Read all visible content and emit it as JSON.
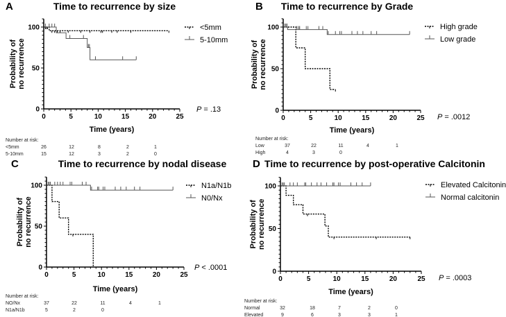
{
  "chart_data": [
    {
      "type": "line",
      "panel_letter": "A",
      "title": "Time to recurrence by size",
      "xlabel": "Time (years)",
      "ylabel": [
        "Probability of",
        "no recurrence"
      ],
      "xlim": [
        0,
        25
      ],
      "ylim": [
        0,
        100
      ],
      "xticks": [
        "0",
        "5",
        "10",
        "15",
        "20",
        "25"
      ],
      "yticks": [
        "0",
        "50",
        "100"
      ],
      "p_value_label": "P",
      "p_value": "= .13",
      "series": [
        {
          "name": "<5mm",
          "style": "dashed",
          "steps": [
            [
              0,
              100
            ],
            [
              1,
              95.5
            ]
          ],
          "end": 23,
          "censors": [
            0.3,
            0.5,
            0.7,
            1.5,
            2,
            2.5,
            3,
            4.5,
            6.8,
            8.5,
            10.5,
            10.8,
            12.5,
            13.5,
            16,
            23
          ]
        },
        {
          "name": "5-10mm",
          "style": "solid",
          "steps": [
            [
              0,
              100
            ],
            [
              2.3,
              93
            ],
            [
              4.1,
              86
            ],
            [
              8,
              75
            ],
            [
              8.5,
              60
            ]
          ],
          "end": 17,
          "censors": [
            0.3,
            1,
            1.5,
            2,
            4.8,
            7.3,
            8.2,
            8.4,
            9.5,
            14.5,
            17
          ]
        }
      ],
      "risk_table": {
        "header": "Number at risk:",
        "rows": [
          {
            "label": "<5mm",
            "values": [
              "26",
              "12",
              "8",
              "2",
              "1"
            ]
          },
          {
            "label": "5-10mm",
            "values": [
              "15",
              "12",
              "3",
              "2",
              "0"
            ]
          }
        ]
      }
    },
    {
      "type": "line",
      "panel_letter": "B",
      "title": "Time to recurrence by Grade",
      "xlabel": "Time (years)",
      "ylabel": [
        "Probability of",
        "no recurrence"
      ],
      "xlim": [
        0,
        25
      ],
      "ylim": [
        0,
        100
      ],
      "xticks": [
        "0",
        "5",
        "10",
        "15",
        "20",
        "25"
      ],
      "yticks": [
        "0",
        "50",
        "100"
      ],
      "p_value_label": "P",
      "p_value": "= .0012",
      "series": [
        {
          "name": "High grade",
          "style": "dashed",
          "steps": [
            [
              0,
              100
            ],
            [
              2.3,
              75
            ],
            [
              4,
              50
            ],
            [
              8.5,
              25
            ]
          ],
          "end": 9.5,
          "censors": [
            9.5
          ]
        },
        {
          "name": "Low grade",
          "style": "solid",
          "steps": [
            [
              0,
              100
            ],
            [
              0.8,
              97
            ],
            [
              8,
              91
            ]
          ],
          "end": 23,
          "censors": [
            0.3,
            0.5,
            0.7,
            2.5,
            2.8,
            3,
            4.2,
            4.5,
            6.5,
            7.2,
            8.2,
            9.5,
            10.3,
            10.6,
            12.5,
            13.5,
            14.5,
            16,
            17,
            23
          ]
        }
      ],
      "risk_table": {
        "header": "Number at risk:",
        "rows": [
          {
            "label": "Low",
            "values": [
              "37",
              "22",
              "11",
              "4",
              "1"
            ]
          },
          {
            "label": "High",
            "values": [
              "4",
              "3",
              "0"
            ]
          }
        ]
      }
    },
    {
      "type": "line",
      "panel_letter": "C",
      "title": "Time to recurrence by nodal disease",
      "xlabel": "Time (years)",
      "ylabel": [
        "Probability of",
        "no recurrence"
      ],
      "xlim": [
        0,
        25
      ],
      "ylim": [
        0,
        100
      ],
      "xticks": [
        "0",
        "5",
        "10",
        "15",
        "20",
        "25"
      ],
      "yticks": [
        "0",
        "50",
        "100"
      ],
      "p_value_label": "P",
      "p_value": "< .0001",
      "series": [
        {
          "name": "N1a/N1b",
          "style": "dashed",
          "steps": [
            [
              0,
              100
            ],
            [
              1,
              80
            ],
            [
              2.3,
              60
            ],
            [
              4,
              40
            ],
            [
              8.5,
              0
            ]
          ],
          "end": 8.5,
          "censors": [
            4.8
          ]
        },
        {
          "name": "N0/Nx",
          "style": "solid",
          "steps": [
            [
              0,
              100
            ],
            [
              8,
              94
            ]
          ],
          "end": 23,
          "censors": [
            0.3,
            0.5,
            0.7,
            1.5,
            2,
            2.5,
            3,
            4.3,
            4.6,
            6.5,
            7.2,
            8.2,
            9.3,
            9.5,
            10.3,
            10.6,
            12.5,
            13.5,
            14.5,
            16,
            17,
            23
          ]
        }
      ],
      "risk_table": {
        "header": "Number at risk:",
        "rows": [
          {
            "label": "NO/Nx",
            "values": [
              "37",
              "22",
              "11",
              "4",
              "1"
            ]
          },
          {
            "label": "N1a/N1b",
            "values": [
              "5",
              "2",
              "0"
            ]
          }
        ]
      }
    },
    {
      "type": "line",
      "panel_letter": "D",
      "title": "Time to recurrence by post-operative Calcitonin",
      "xlabel": "Time (years)",
      "ylabel": [
        "Probability of",
        "no recurrence"
      ],
      "xlim": [
        0,
        25
      ],
      "ylim": [
        0,
        100
      ],
      "xticks": [
        "0",
        "5",
        "10",
        "15",
        "20",
        "25"
      ],
      "yticks": [
        "0",
        "50",
        "100"
      ],
      "p_value_label": "P",
      "p_value": "= .0003",
      "series": [
        {
          "name": "Elevated Calcitonin",
          "style": "dashed",
          "steps": [
            [
              0,
              100
            ],
            [
              1,
              89
            ],
            [
              2.3,
              78
            ],
            [
              4,
              67
            ],
            [
              7.9,
              53
            ],
            [
              8.5,
              40
            ]
          ],
          "end": 23,
          "censors": [
            4.8,
            9.5,
            17,
            23
          ]
        },
        {
          "name": "Normal calcitonin",
          "style": "solid",
          "steps": [
            [
              0,
              100
            ]
          ],
          "end": 16,
          "censors": [
            0.3,
            0.5,
            0.7,
            1.7,
            2.3,
            3,
            4.3,
            4.5,
            5.5,
            6.5,
            7.2,
            8.2,
            9.3,
            9.5,
            10.3,
            10.6,
            12.5,
            13.5,
            14.5,
            16
          ]
        }
      ],
      "risk_table": {
        "header": "Number at risk:",
        "rows": [
          {
            "label": "Normal",
            "values": [
              "32",
              "18",
              "7",
              "2",
              "0"
            ]
          },
          {
            "label": "Elevated",
            "values": [
              "9",
              "6",
              "3",
              "3",
              "1"
            ]
          }
        ]
      }
    }
  ]
}
